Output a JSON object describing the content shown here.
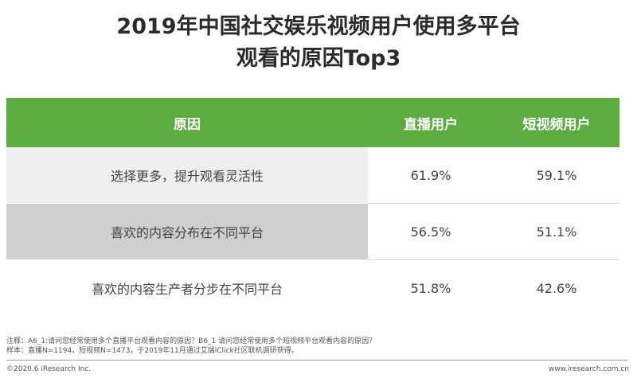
{
  "title_line1": "2019年中国社交娱乐视频用户使用多平台",
  "title_line2": "观看的原因Top3",
  "chart_data": {
    "type": "table",
    "columns": [
      "原因",
      "直播用户",
      "短视频用户"
    ],
    "rows": [
      {
        "reason": "选择更多，提升观看灵活性",
        "live": "61.9%",
        "short": "59.1%"
      },
      {
        "reason": "喜欢的内容分布在不同平台",
        "live": "56.5%",
        "short": "51.1%"
      },
      {
        "reason": "喜欢的内容生产者分步在不同平台",
        "live": "51.8%",
        "short": "42.6%"
      }
    ],
    "header_color": "#5cac3f"
  },
  "notes": {
    "line1": "注释：A6_1:请问您经常使用多个直播平台观看内容的原因？B6_1 请问您经常使用多个短视频平台观看内容的原因？",
    "line2": "样本：直播N=1194，短视频N=1473，于2019年11月通过艾瑞iClick社区联机调研获得。"
  },
  "footer": {
    "left": "©2020.6 iResearch Inc.",
    "right": "www.iresearch.com.cn"
  }
}
